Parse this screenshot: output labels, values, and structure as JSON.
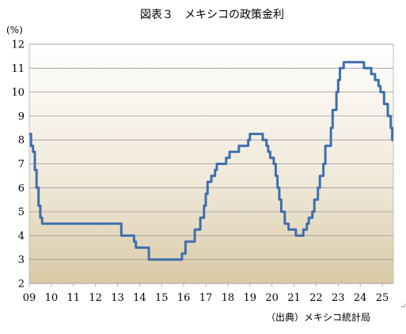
{
  "chart_data": {
    "type": "line",
    "title": "図表３　メキシコの政策金利",
    "ylabel_unit": "(%)",
    "source": "（出典）メキシコ統計局",
    "ylim": [
      2,
      12
    ],
    "yticks": [
      2,
      3,
      4,
      5,
      6,
      7,
      8,
      9,
      10,
      11,
      12
    ],
    "xlim": [
      2009.0,
      2025.5
    ],
    "xticks": [
      {
        "label": "09",
        "x": 2009
      },
      {
        "label": "10",
        "x": 2010
      },
      {
        "label": "11",
        "x": 2011
      },
      {
        "label": "12",
        "x": 2012
      },
      {
        "label": "13",
        "x": 2013
      },
      {
        "label": "14",
        "x": 2014
      },
      {
        "label": "15",
        "x": 2015
      },
      {
        "label": "16",
        "x": 2016
      },
      {
        "label": "17",
        "x": 2017
      },
      {
        "label": "18",
        "x": 2018
      },
      {
        "label": "19",
        "x": 2019
      },
      {
        "label": "20",
        "x": 2020
      },
      {
        "label": "21",
        "x": 2021
      },
      {
        "label": "22",
        "x": 2022
      },
      {
        "label": "23",
        "x": 2023
      },
      {
        "label": "24",
        "x": 2024
      },
      {
        "label": "25",
        "x": 2025
      }
    ],
    "grid": {
      "horizontal": true,
      "vertical": false
    },
    "background": "gradient-white-to-tan",
    "line_color": "#3d6fae",
    "series": [
      {
        "step": true,
        "points": [
          [
            2009.0,
            8.25
          ],
          [
            2009.08,
            7.75
          ],
          [
            2009.17,
            7.5
          ],
          [
            2009.25,
            6.75
          ],
          [
            2009.33,
            6.0
          ],
          [
            2009.42,
            5.25
          ],
          [
            2009.5,
            4.75
          ],
          [
            2009.58,
            4.5
          ],
          [
            2013.17,
            4.0
          ],
          [
            2013.75,
            3.75
          ],
          [
            2013.83,
            3.5
          ],
          [
            2014.42,
            3.0
          ],
          [
            2015.92,
            3.25
          ],
          [
            2016.08,
            3.75
          ],
          [
            2016.5,
            4.25
          ],
          [
            2016.75,
            4.75
          ],
          [
            2016.92,
            5.25
          ],
          [
            2017.0,
            5.75
          ],
          [
            2017.08,
            6.25
          ],
          [
            2017.25,
            6.5
          ],
          [
            2017.42,
            6.75
          ],
          [
            2017.5,
            7.0
          ],
          [
            2017.92,
            7.25
          ],
          [
            2018.08,
            7.5
          ],
          [
            2018.5,
            7.75
          ],
          [
            2018.92,
            8.0
          ],
          [
            2019.0,
            8.25
          ],
          [
            2019.58,
            8.0
          ],
          [
            2019.75,
            7.75
          ],
          [
            2019.83,
            7.5
          ],
          [
            2019.92,
            7.25
          ],
          [
            2020.08,
            7.0
          ],
          [
            2020.17,
            6.5
          ],
          [
            2020.25,
            6.0
          ],
          [
            2020.33,
            5.5
          ],
          [
            2020.42,
            5.0
          ],
          [
            2020.58,
            4.5
          ],
          [
            2020.75,
            4.25
          ],
          [
            2021.08,
            4.0
          ],
          [
            2021.42,
            4.25
          ],
          [
            2021.58,
            4.5
          ],
          [
            2021.67,
            4.75
          ],
          [
            2021.83,
            5.0
          ],
          [
            2021.92,
            5.5
          ],
          [
            2022.08,
            6.0
          ],
          [
            2022.17,
            6.5
          ],
          [
            2022.33,
            7.0
          ],
          [
            2022.42,
            7.75
          ],
          [
            2022.67,
            8.5
          ],
          [
            2022.75,
            9.25
          ],
          [
            2022.92,
            10.0
          ],
          [
            2023.0,
            10.5
          ],
          [
            2023.08,
            11.0
          ],
          [
            2023.25,
            11.25
          ],
          [
            2024.17,
            11.0
          ],
          [
            2024.5,
            10.75
          ],
          [
            2024.67,
            10.5
          ],
          [
            2024.83,
            10.25
          ],
          [
            2024.92,
            10.0
          ],
          [
            2025.08,
            9.5
          ],
          [
            2025.25,
            9.0
          ],
          [
            2025.38,
            8.5
          ],
          [
            2025.45,
            8.0
          ]
        ]
      }
    ]
  }
}
